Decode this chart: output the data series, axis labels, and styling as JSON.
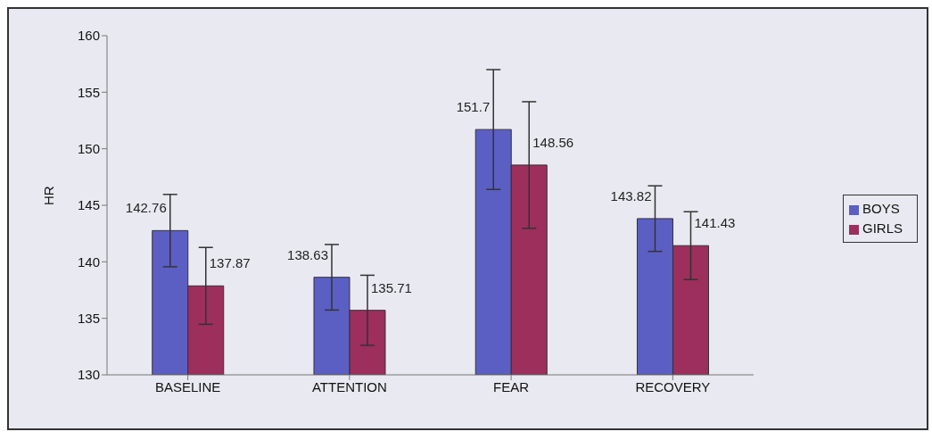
{
  "chart_data": {
    "type": "bar",
    "ylabel": "HR",
    "categories": [
      "BASELINE",
      "ATTENTION",
      "FEAR",
      "RECOVERY"
    ],
    "series": [
      {
        "name": "BOYS",
        "color": "#5b5fc4",
        "values": [
          142.76,
          138.63,
          151.7,
          143.82
        ],
        "errors": [
          3.2,
          2.9,
          5.3,
          2.9
        ]
      },
      {
        "name": "GIRLS",
        "color": "#9c2f5c",
        "values": [
          137.87,
          135.71,
          148.56,
          141.43
        ],
        "errors": [
          3.4,
          3.1,
          5.6,
          3.0
        ]
      }
    ],
    "ylim": [
      130,
      160
    ],
    "yticks": [
      130,
      135,
      140,
      145,
      150,
      155,
      160
    ],
    "grid": false,
    "legend": "right",
    "data_labels": true
  }
}
